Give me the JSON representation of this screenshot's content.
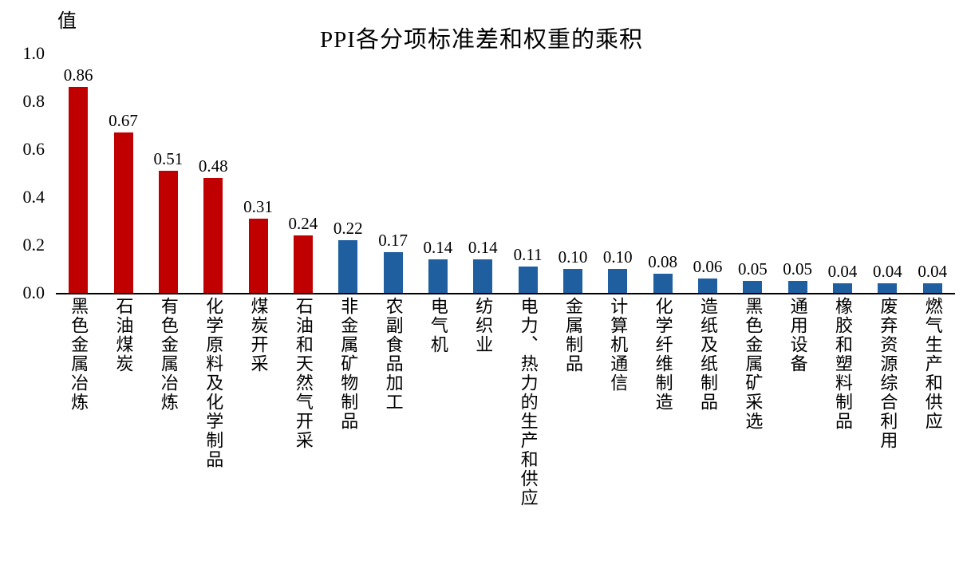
{
  "chart_data": {
    "type": "bar",
    "title": "PPI各分项标准差和权重的乘积",
    "ylabel": "值",
    "xlabel": "",
    "ylim": [
      0,
      1.0
    ],
    "yticks": [
      0.0,
      0.2,
      0.4,
      0.6,
      0.8,
      1.0
    ],
    "grid": false,
    "legend": "none",
    "categories": [
      "黑色金属冶炼",
      "石油煤炭",
      "有色金属冶炼",
      "化学原料及化学制品",
      "煤炭开采",
      "石油和天然气开采",
      "非金属矿物制品",
      "农副食品加工",
      "电气机",
      "纺织业",
      "电力、热力的生产和供应",
      "金属制品",
      "计算机通信",
      "化学纤维制造",
      "造纸及纸制品",
      "黑色金属矿采选",
      "通用设备",
      "橡胶和塑料制品",
      "废弃资源综合利用",
      "燃气生产和供应"
    ],
    "values": [
      0.86,
      0.67,
      0.51,
      0.48,
      0.31,
      0.24,
      0.22,
      0.17,
      0.14,
      0.14,
      0.11,
      0.1,
      0.1,
      0.08,
      0.06,
      0.05,
      0.05,
      0.04,
      0.04,
      0.04
    ],
    "bar_colors": [
      "#c00000",
      "#c00000",
      "#c00000",
      "#c00000",
      "#c00000",
      "#c00000",
      "#1f5fa0",
      "#1f5fa0",
      "#1f5fa0",
      "#1f5fa0",
      "#1f5fa0",
      "#1f5fa0",
      "#1f5fa0",
      "#1f5fa0",
      "#1f5fa0",
      "#1f5fa0",
      "#1f5fa0",
      "#1f5fa0",
      "#1f5fa0",
      "#1f5fa0"
    ],
    "colors": {
      "red_series": "#c00000",
      "blue_series": "#1f5fa0",
      "axis": "#000000"
    }
  }
}
